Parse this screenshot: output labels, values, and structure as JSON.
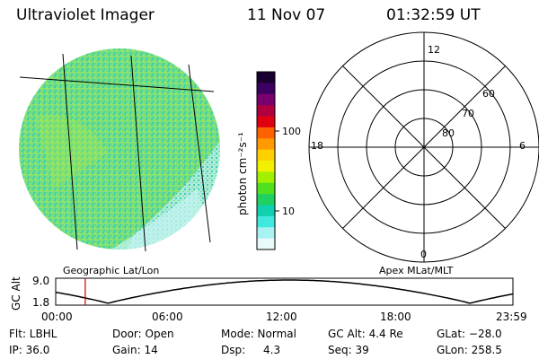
{
  "header": {
    "instrument": "Ultraviolet Imager",
    "date": "11 Nov 07",
    "time": "01:32:59 UT"
  },
  "colorbar": {
    "unit_label": "photon cm⁻²s⁻¹",
    "ticks": [
      "100",
      "10"
    ],
    "scale": "log",
    "colors": [
      "#1a0030",
      "#3c0060",
      "#7a0070",
      "#b00040",
      "#e00010",
      "#ff6000",
      "#ff9a00",
      "#ffd000",
      "#f0f000",
      "#a0f000",
      "#50e020",
      "#20d060",
      "#10d0b0",
      "#40e8e0",
      "#a8f2f2",
      "#e8fafa"
    ]
  },
  "geo_map": {
    "caption": "Geographic Lat/Lon",
    "colors": {
      "dominant": "#7ee07a",
      "secondary": "#3ccfb0",
      "low": "#b8eef0"
    }
  },
  "polar_plot": {
    "caption": "Apex MLat/MLT",
    "lat_labels": [
      "60",
      "70",
      "80"
    ],
    "mlt_labels": {
      "top": "12",
      "left": "18",
      "right": "6",
      "bottom": "0"
    }
  },
  "altitude_plot": {
    "ylabel": "GC Alt",
    "y_ticks": [
      "9.0",
      "1.8"
    ],
    "x_ticks": [
      "00:00",
      "06:00",
      "12:00",
      "18:00",
      "23:59"
    ],
    "current_time_color": "#cc0000",
    "current_time_hours": 1.55
  },
  "status": {
    "filter": "Flt: LBHL",
    "door": "Door: Open",
    "mode": "Mode: Normal",
    "gc_alt": "GC Alt: 4.4 Re",
    "glat": "GLat: −28.0",
    "ip": "IP: 36.0",
    "gain": "Gain: 14",
    "dsp_label": "Dsp:",
    "dsp_value": "4.3",
    "seq": "Seq: 39",
    "glon": "GLon: 258.5"
  }
}
